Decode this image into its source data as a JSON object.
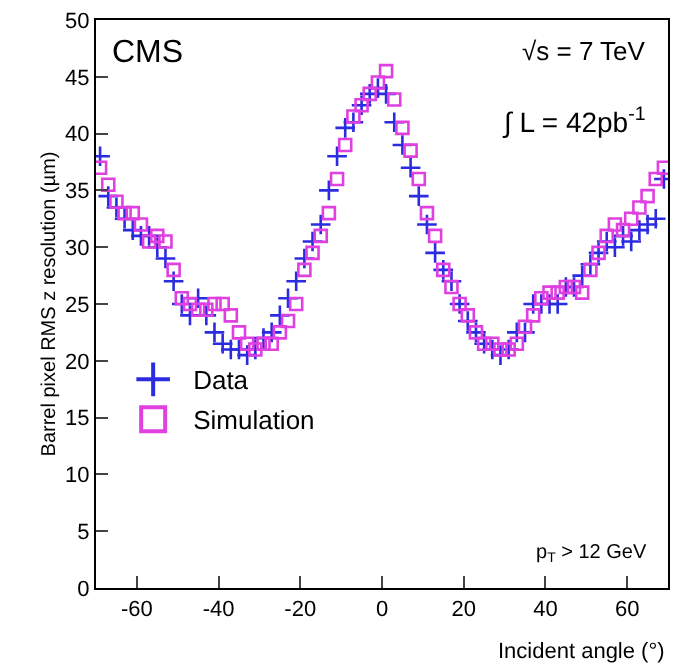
{
  "chart_data": {
    "type": "scatter",
    "xlabel": "Incident angle (°)",
    "ylabel": "Barrel pixel RMS z resolution (µm)",
    "x": [
      -69,
      -67,
      -65,
      -63,
      -61,
      -59,
      -57,
      -55,
      -53,
      -51,
      -49,
      -47,
      -45,
      -43,
      -41,
      -39,
      -37,
      -35,
      -33,
      -31,
      -29,
      -27,
      -25,
      -23,
      -21,
      -19,
      -17,
      -15,
      -13,
      -11,
      -9,
      -7,
      -5,
      -3,
      -1,
      1,
      3,
      5,
      7,
      9,
      11,
      13,
      15,
      17,
      19,
      21,
      23,
      25,
      27,
      29,
      31,
      33,
      35,
      37,
      39,
      41,
      43,
      45,
      47,
      49,
      51,
      53,
      55,
      57,
      59,
      61,
      63,
      65,
      67,
      69
    ],
    "series": [
      {
        "name": "Data",
        "color": "#2b2be0",
        "marker": "cross",
        "values": [
          38,
          34.5,
          33.5,
          32.5,
          31.5,
          31,
          31,
          30,
          29,
          27,
          25,
          24,
          25.5,
          24,
          22.5,
          21.5,
          21,
          21,
          20.5,
          21,
          22,
          22.5,
          24,
          25.5,
          27,
          29,
          30.5,
          32,
          35,
          38,
          40.5,
          41,
          42.5,
          43.5,
          44,
          43.5,
          41,
          39,
          37,
          34.5,
          32,
          29.5,
          28,
          27,
          25,
          23.5,
          22.5,
          21.5,
          21,
          20.5,
          21,
          22.5,
          22.5,
          25,
          25,
          25,
          25,
          26.5,
          26.5,
          27.5,
          28.5,
          29.5,
          30.5,
          30,
          31,
          30.5,
          31.5,
          32,
          32.5,
          36
        ]
      },
      {
        "name": "Simulation",
        "color": "#e040e0",
        "marker": "square",
        "values": [
          37,
          35.5,
          34,
          33,
          33,
          32,
          30.5,
          31,
          30.5,
          28,
          25.5,
          25,
          24.5,
          24.5,
          25,
          25,
          24,
          22.5,
          21.5,
          21,
          21.5,
          21.5,
          22.5,
          23.5,
          25,
          28,
          29.5,
          31,
          33,
          36,
          39,
          41.5,
          42.5,
          43.5,
          44.5,
          45.5,
          43,
          40.5,
          38.5,
          36,
          33,
          31,
          28,
          26.5,
          25,
          24,
          22.5,
          21.5,
          21.5,
          21,
          21,
          21.5,
          23,
          24,
          25.5,
          26,
          26,
          26.5,
          26.5,
          26,
          28,
          29.5,
          31,
          32,
          31.5,
          32.5,
          33.5,
          34.5,
          36,
          37
        ]
      }
    ],
    "xlim": [
      -70,
      70
    ],
    "xticks": [
      -60,
      -40,
      -20,
      0,
      20,
      40,
      60
    ],
    "ylim": [
      0,
      50
    ],
    "yticks": [
      0,
      5,
      10,
      15,
      20,
      25,
      30,
      35,
      40,
      45,
      50
    ],
    "legend": "left",
    "annotations": [
      "CMS",
      "√s = 7 TeV",
      "∫ L = 42pb$^{-1}$",
      "p$_{T}$ > 12 GeV"
    ]
  }
}
